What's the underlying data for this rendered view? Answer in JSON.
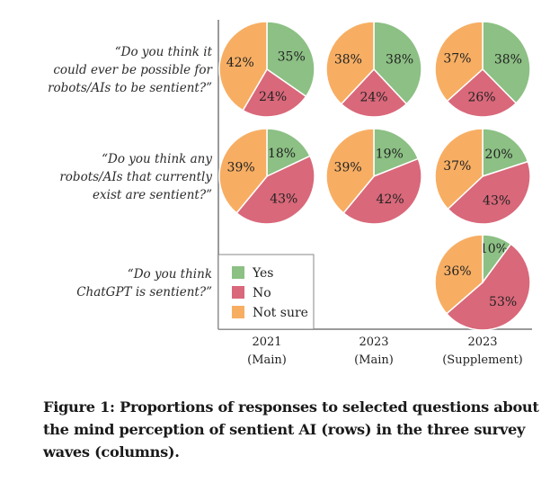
{
  "chart_data": {
    "type": "pie",
    "title": "",
    "colors": {
      "Yes": "#8cc084",
      "No": "#d9687a",
      "Not sure": "#f7ae63"
    },
    "legend": {
      "placement": "bottom-left",
      "entries": [
        "Yes",
        "No",
        "Not sure"
      ]
    },
    "rows": [
      {
        "question": [
          "“Do you think it",
          "could ever be possible for",
          "robots/AIs to be sentient?”"
        ]
      },
      {
        "question": [
          "“Do you think any",
          "robots/AIs that currently",
          "exist are sentient?”"
        ]
      },
      {
        "question": [
          "“Do you think",
          "ChatGPT is sentient?”"
        ]
      }
    ],
    "columns": [
      {
        "label": [
          "2021",
          "(Main)"
        ]
      },
      {
        "label": [
          "2023",
          "(Main)"
        ]
      },
      {
        "label": [
          "2023",
          "(Supplement)"
        ]
      }
    ],
    "pies": [
      {
        "row": 0,
        "col": 0,
        "Yes": 35,
        "No": 24,
        "Not sure": 42
      },
      {
        "row": 0,
        "col": 1,
        "Yes": 38,
        "No": 24,
        "Not sure": 38
      },
      {
        "row": 0,
        "col": 2,
        "Yes": 38,
        "No": 26,
        "Not sure": 37
      },
      {
        "row": 1,
        "col": 0,
        "Yes": 18,
        "No": 43,
        "Not sure": 39
      },
      {
        "row": 1,
        "col": 1,
        "Yes": 19,
        "No": 42,
        "Not sure": 39
      },
      {
        "row": 1,
        "col": 2,
        "Yes": 20,
        "No": 43,
        "Not sure": 37
      },
      {
        "row": 2,
        "col": 2,
        "Yes": 10,
        "No": 53,
        "Not sure": 36
      }
    ]
  },
  "caption": "Figure 1: Proportions of responses to selected questions about the mind perception of sentient AI (rows) in the three survey waves (columns)."
}
